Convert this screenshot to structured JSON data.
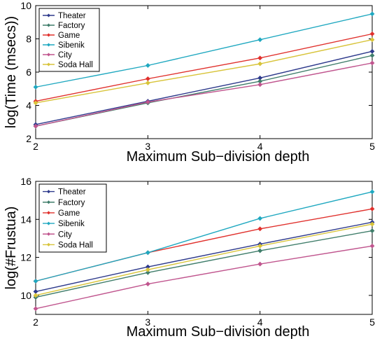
{
  "chart_data": [
    {
      "type": "line",
      "xlabel": "Maximum Sub−division depth",
      "ylabel": "log(Time (msecs))",
      "x": [
        2,
        3,
        4,
        5
      ],
      "xlim": [
        2,
        5
      ],
      "ylim": [
        2,
        10
      ],
      "xticks": [
        "2",
        "3",
        "4",
        "5"
      ],
      "yticks": [
        "2",
        "4",
        "6",
        "8",
        "10"
      ],
      "grid": false,
      "legend_position": "top-left",
      "series": [
        {
          "name": "Theater",
          "color": "#2e3a8c",
          "values": [
            2.85,
            4.25,
            5.65,
            7.25
          ]
        },
        {
          "name": "Factory",
          "color": "#3f7d6a",
          "values": [
            2.75,
            4.15,
            5.45,
            7.0
          ]
        },
        {
          "name": "Game",
          "color": "#e0302c",
          "values": [
            4.25,
            5.6,
            6.85,
            8.3
          ]
        },
        {
          "name": "Sibenik",
          "color": "#1fa8c0",
          "values": [
            5.1,
            6.4,
            7.95,
            9.5
          ]
        },
        {
          "name": "City",
          "color": "#c0558e",
          "values": [
            2.75,
            4.2,
            5.25,
            6.55
          ]
        },
        {
          "name": "Soda Hall",
          "color": "#d8c43a",
          "values": [
            4.15,
            5.35,
            6.5,
            7.95
          ]
        }
      ]
    },
    {
      "type": "line",
      "xlabel": "Maximum Sub−division depth",
      "ylabel": "log(#Frustua)",
      "x": [
        2,
        3,
        4,
        5
      ],
      "xlim": [
        2,
        5
      ],
      "ylim": [
        9,
        16
      ],
      "xticks": [
        "2",
        "3",
        "4",
        "5"
      ],
      "yticks": [
        "10",
        "12",
        "14",
        "16"
      ],
      "grid": false,
      "legend_position": "top-left",
      "series": [
        {
          "name": "Theater",
          "color": "#2e3a8c",
          "values": [
            10.2,
            11.5,
            12.7,
            13.85
          ]
        },
        {
          "name": "Factory",
          "color": "#3f7d6a",
          "values": [
            9.9,
            11.2,
            12.35,
            13.4
          ]
        },
        {
          "name": "Game",
          "color": "#e0302c",
          "values": [
            10.75,
            12.25,
            13.5,
            14.55
          ]
        },
        {
          "name": "Sibenik",
          "color": "#1fa8c0",
          "values": [
            10.75,
            12.25,
            14.05,
            15.45
          ]
        },
        {
          "name": "City",
          "color": "#c0558e",
          "values": [
            9.3,
            10.6,
            11.65,
            12.6
          ]
        },
        {
          "name": "Soda Hall",
          "color": "#d8c43a",
          "values": [
            10.0,
            11.35,
            12.6,
            13.75
          ]
        }
      ]
    }
  ]
}
